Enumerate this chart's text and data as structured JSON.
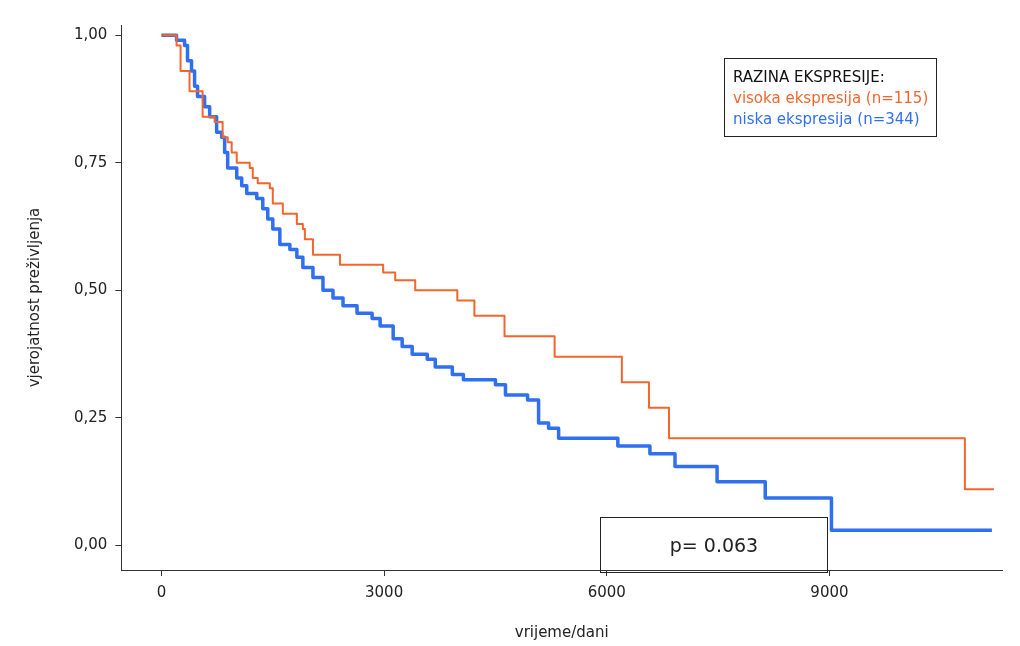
{
  "chart_data": {
    "type": "step",
    "xlabel": "vrijeme/dani",
    "ylabel": "vjerojatnost preživljenja",
    "legend_title": "RAZINA EKSPRESIJE:",
    "legend": "top right",
    "grid": false,
    "xlim": [
      -540,
      11325
    ],
    "xticks": [
      0,
      3000,
      6000,
      9000
    ],
    "ylim": [
      -0.048,
      1.02
    ],
    "yticks": [
      {
        "value": 0,
        "label": "0,00"
      },
      {
        "value": 0.25,
        "label": "0,25"
      },
      {
        "value": 0.5,
        "label": "0,50"
      },
      {
        "value": 0.75,
        "label": "0,75"
      },
      {
        "value": 1,
        "label": "1,00"
      }
    ],
    "annotations": [
      "p= 0.063"
    ],
    "series": [
      {
        "name": "visoka ekspresija (n=115)",
        "color": "#f4652c",
        "x": [
          0,
          203,
          257,
          378,
          554,
          716,
          824,
          892,
          946,
          1014,
          1189,
          1230,
          1297,
          1460,
          1500,
          1635,
          1824,
          1905,
          1932,
          2041,
          2405,
          2987,
          3149,
          3419,
          3986,
          4216,
          4622,
          5297,
          6203,
          6568,
          6838,
          10825,
          11216
        ],
        "values": [
          1,
          0.98,
          0.93,
          0.89,
          0.84,
          0.83,
          0.8,
          0.79,
          0.77,
          0.75,
          0.74,
          0.72,
          0.71,
          0.7,
          0.67,
          0.65,
          0.63,
          0.62,
          0.6,
          0.57,
          0.55,
          0.535,
          0.52,
          0.5,
          0.48,
          0.45,
          0.41,
          0.37,
          0.32,
          0.27,
          0.21,
          0.11,
          0.11
        ]
      },
      {
        "name": "niska ekspresija (n=344)",
        "color": "#2f6ff0",
        "x": [
          0,
          203,
          311,
          351,
          405,
          446,
          486,
          581,
          649,
          743,
          811,
          851,
          892,
          1014,
          1081,
          1149,
          1284,
          1365,
          1432,
          1500,
          1595,
          1730,
          1824,
          1905,
          2041,
          2176,
          2311,
          2446,
          2635,
          2838,
          2946,
          3122,
          3243,
          3378,
          3581,
          3689,
          3919,
          4068,
          4500,
          4635,
          4933,
          5081,
          5216,
          5351,
          6149,
          6581,
          6919,
          7486,
          8135,
          9027,
          11189
        ],
        "values": [
          1,
          0.99,
          0.98,
          0.95,
          0.93,
          0.9,
          0.88,
          0.86,
          0.84,
          0.81,
          0.8,
          0.77,
          0.74,
          0.72,
          0.705,
          0.69,
          0.68,
          0.66,
          0.64,
          0.62,
          0.59,
          0.58,
          0.565,
          0.545,
          0.525,
          0.5,
          0.485,
          0.47,
          0.455,
          0.445,
          0.43,
          0.405,
          0.39,
          0.375,
          0.365,
          0.35,
          0.335,
          0.325,
          0.315,
          0.295,
          0.285,
          0.24,
          0.23,
          0.21,
          0.195,
          0.18,
          0.155,
          0.125,
          0.093,
          0.03,
          0.03
        ]
      }
    ]
  }
}
